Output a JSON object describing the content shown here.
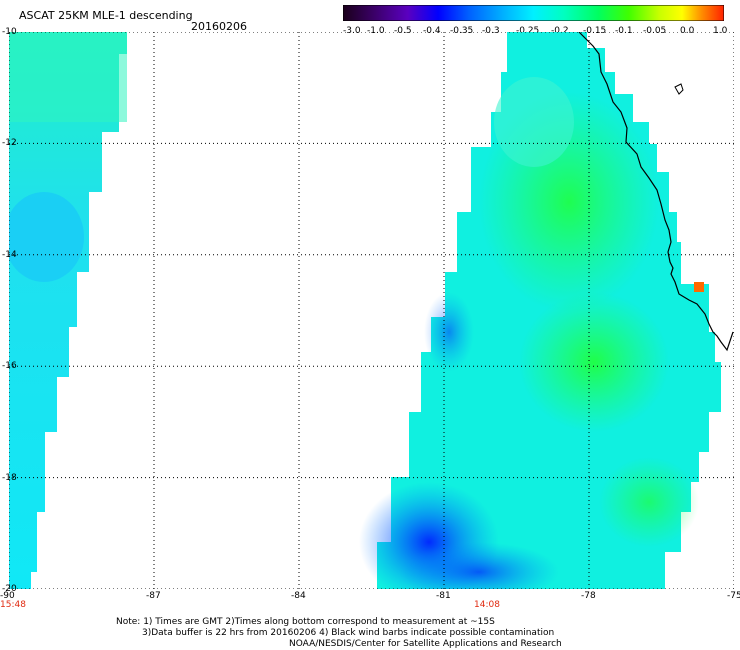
{
  "header": {
    "title": "ASCAT 25KM MLE-1 descending",
    "date": "20160206"
  },
  "colorbar": {
    "labels": [
      "-3.0",
      "-1.0",
      "-0.5",
      "-0.4",
      "-0.35",
      "-0.3",
      "-0.25",
      "-0.2",
      "-0.15",
      "-0.1",
      "-0.05",
      "0.0",
      "1.0"
    ],
    "colors": [
      "#1a001a",
      "#3a0066",
      "#4b00c8",
      "#0000ff",
      "#0050ff",
      "#0090ff",
      "#00d8ff",
      "#00ffd0",
      "#00ff90",
      "#00ff30",
      "#66ff00",
      "#e8ff00",
      "#ff9000",
      "#ff2000"
    ]
  },
  "map": {
    "lat_labels": [
      "-10",
      "-12",
      "-14",
      "-16",
      "-18",
      "-20"
    ],
    "lon_labels": [
      "-90",
      "-87",
      "-84",
      "-81",
      "-78",
      "-75"
    ],
    "lat_range": [
      -20,
      -10
    ],
    "lon_range": [
      -90,
      -75
    ],
    "grid": "dotted"
  },
  "times": {
    "left": "15:48",
    "middle": "14:08"
  },
  "notes": {
    "line1": "Note: 1) Times are GMT 2)Times along bottom correspond to measurement at ~15S",
    "line2": "3)Data buffer is 22 hrs from 20160206 4) Black wind barbs indicate possible contamination",
    "line3": "NOAA/NESDIS/Center for Satellite Applications and Research"
  }
}
